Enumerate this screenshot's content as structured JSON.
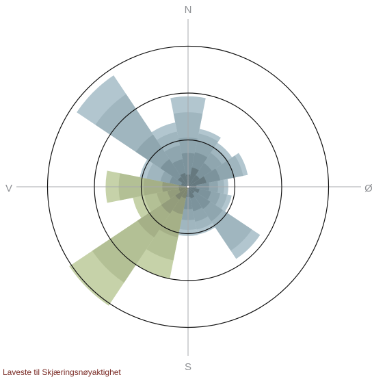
{
  "chart_data": {
    "type": "polar-bar",
    "title": "",
    "compass": {
      "north": "N",
      "east": "Ø",
      "south": "S",
      "west": "V"
    },
    "rings": [
      1,
      2,
      3
    ],
    "grid": true,
    "legend": "none",
    "sectors": [
      {
        "direction": "N",
        "center_deg": 0,
        "series": "blue",
        "values": [
          1.93,
          1.59,
          1.05,
          0.72,
          0.26
        ]
      },
      {
        "direction": "NNØ",
        "center_deg": 22.5,
        "series": "blue",
        "values": [
          1.26,
          1.16,
          1.0,
          0.75,
          0.42
        ]
      },
      {
        "direction": "NØ",
        "center_deg": 45,
        "series": "blue",
        "values": [
          1.13,
          1.02,
          0.87,
          0.61,
          0.3
        ]
      },
      {
        "direction": "ØNØ",
        "center_deg": 67.5,
        "series": "blue",
        "values": [
          1.3,
          1.2,
          1.0,
          0.7,
          0.4
        ]
      },
      {
        "direction": "Ø",
        "center_deg": 90,
        "series": "blue",
        "values": [
          0.86,
          0.77,
          0.64,
          0.45,
          0.18
        ]
      },
      {
        "direction": "ØSØ",
        "center_deg": 112.5,
        "series": "blue",
        "values": [
          0.95,
          0.85,
          0.7,
          0.5,
          0.25
        ]
      },
      {
        "direction": "SØ",
        "center_deg": 135,
        "series": "blue",
        "values": [
          1.85,
          1.64,
          0.89,
          0.57,
          0.17
        ]
      },
      {
        "direction": "SSØ",
        "center_deg": 157.5,
        "series": "blue",
        "values": [
          1.04,
          0.93,
          0.76,
          0.53,
          0.25
        ]
      },
      {
        "direction": "S",
        "center_deg": 180,
        "series": "blue",
        "values": [
          1.05,
          0.92,
          0.71,
          0.48,
          0.22
        ]
      },
      {
        "direction": "SSV",
        "center_deg": 202.5,
        "series": "green",
        "values": [
          2.0,
          1.6,
          1.1,
          0.6,
          0.25
        ]
      },
      {
        "direction": "SV",
        "center_deg": 225,
        "series": "green",
        "values": [
          3.05,
          2.46,
          1.3,
          0.69,
          0.33
        ]
      },
      {
        "direction": "VSV",
        "center_deg": 247.5,
        "series": "green",
        "values": [
          1.2,
          0.95,
          0.68,
          0.45,
          0.2
        ]
      },
      {
        "direction": "V",
        "center_deg": 270,
        "series": "green",
        "values": [
          1.76,
          1.48,
          0.95,
          0.55,
          0.2
        ]
      },
      {
        "direction": "VNV",
        "center_deg": 292.5,
        "series": "blue",
        "values": [
          1.05,
          0.9,
          0.6,
          0.4,
          0.15
        ]
      },
      {
        "direction": "NV",
        "center_deg": 315,
        "series": "blue",
        "values": [
          2.86,
          2.38,
          1.34,
          0.71,
          0.26
        ]
      },
      {
        "direction": "NNV",
        "center_deg": 337.5,
        "series": "blue",
        "values": [
          1.4,
          1.2,
          0.9,
          0.6,
          0.3
        ]
      }
    ],
    "colors": {
      "blue": [
        "#b2c6cf",
        "#a0b6bf",
        "#8fa6af",
        "#7c939c",
        "#66797f"
      ],
      "green": [
        "#c6d2a9",
        "#b3c095",
        "#a5b087",
        "#939c7b",
        "#7e8670"
      ]
    }
  },
  "footer_note": "Laveste til Skjæringsnøyaktighet"
}
